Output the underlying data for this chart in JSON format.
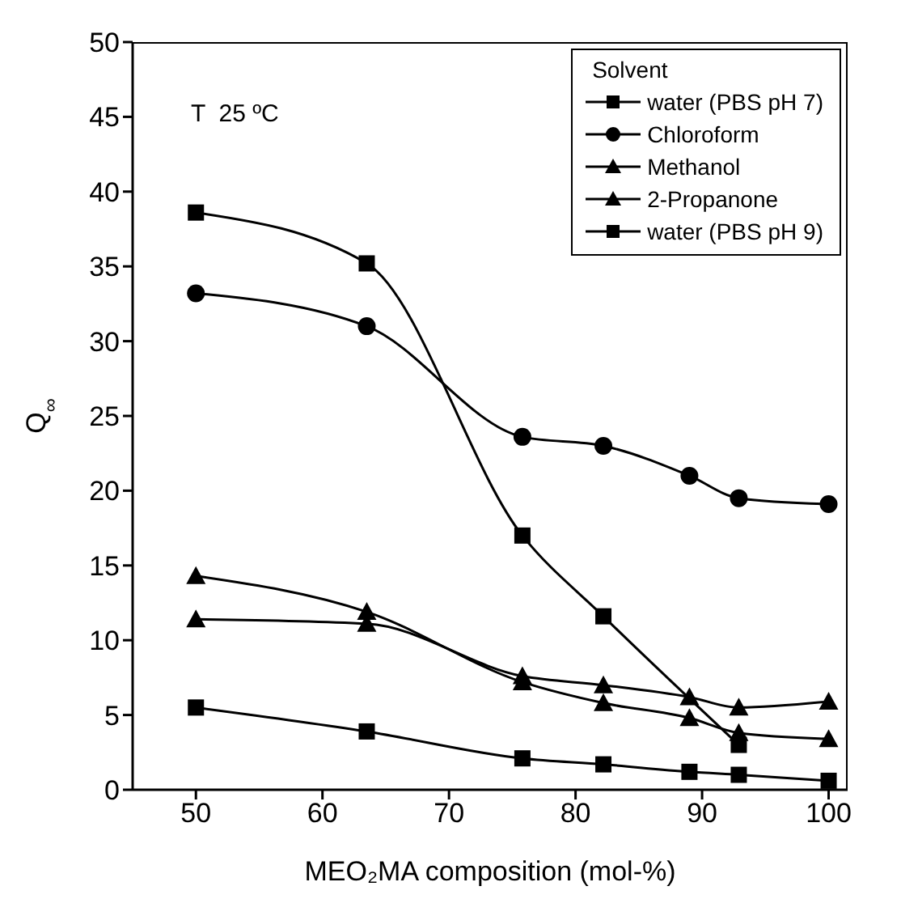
{
  "chart_data": {
    "type": "line",
    "xlabel": "MEO₂MA composition (mol-%)",
    "ylabel": "Q$_{∞}$",
    "legend_title": "Solvent",
    "annotations": [
      "T  25 ºC"
    ],
    "x": [
      50,
      63.5,
      75.8,
      82.2,
      89,
      92.9,
      100
    ],
    "series": [
      {
        "name": "water (PBS pH 7)",
        "color": "#000000",
        "marker": "square",
        "values": [
          38.6,
          35.2,
          17.0,
          11.6,
          null,
          3.0,
          null
        ]
      },
      {
        "name": "Chloroform",
        "color": "#000000",
        "marker": "circle",
        "values": [
          33.2,
          31.0,
          23.6,
          23.0,
          21.0,
          19.5,
          19.1
        ]
      },
      {
        "name": "Methanol",
        "color": "#000000",
        "marker": "triangle",
        "values": [
          14.3,
          11.9,
          7.2,
          5.8,
          4.8,
          3.8,
          3.4
        ]
      },
      {
        "name": "2-Propanone",
        "color": "#000000",
        "marker": "triangle",
        "values": [
          11.4,
          11.1,
          7.6,
          7.0,
          6.2,
          5.5,
          5.9
        ]
      },
      {
        "name": "water (PBS pH 9)",
        "color": "#000000",
        "marker": "square",
        "values": [
          5.5,
          3.9,
          2.1,
          1.7,
          1.2,
          1.0,
          0.6
        ]
      }
    ],
    "xlim": [
      45,
      101.5
    ],
    "xticks": [
      50,
      60,
      70,
      80,
      90,
      100
    ],
    "ylim": [
      0,
      50
    ],
    "yticks": [
      0,
      5,
      10,
      15,
      20,
      25,
      30,
      35,
      40,
      45,
      50
    ],
    "grid": false,
    "legend": "top right"
  }
}
